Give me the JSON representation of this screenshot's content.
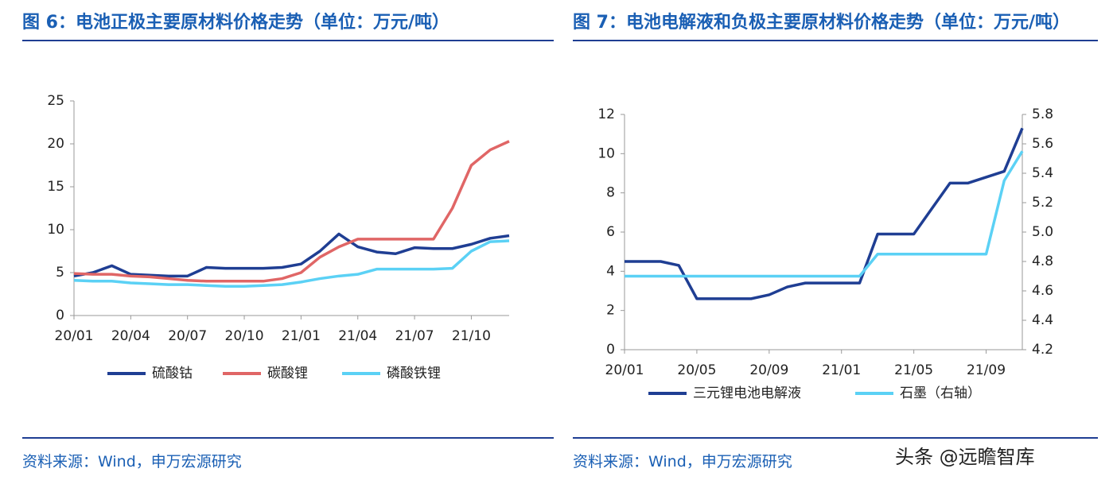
{
  "chart_data": [
    {
      "type": "line",
      "title": "图 6：电池正极主要原材料价格走势（单位：万元/吨）",
      "source": "资料来源：Wind，申万宏源研究",
      "categories": [
        "20/01",
        null,
        null,
        "20/04",
        null,
        null,
        "20/07",
        null,
        null,
        "20/10",
        null,
        null,
        "21/01",
        null,
        null,
        "21/04",
        null,
        null,
        "21/07",
        null,
        null,
        "21/10",
        null,
        null
      ],
      "series": [
        {
          "name": "硫酸钴",
          "color": "#1f3e93",
          "values": [
            4.6,
            5.0,
            5.8,
            4.8,
            4.7,
            4.6,
            4.6,
            5.6,
            5.5,
            5.5,
            5.5,
            5.6,
            6.0,
            7.5,
            9.5,
            8.0,
            7.4,
            7.2,
            7.9,
            7.8,
            7.8,
            8.3,
            9.0,
            9.3
          ]
        },
        {
          "name": "碳酸锂",
          "color": "#e06666",
          "values": [
            4.9,
            4.8,
            4.8,
            4.6,
            4.5,
            4.3,
            4.1,
            4.0,
            4.0,
            4.0,
            4.0,
            4.3,
            5.0,
            6.8,
            8.0,
            8.9,
            8.9,
            8.9,
            8.9,
            8.9,
            12.5,
            17.5,
            19.3,
            20.3
          ]
        },
        {
          "name": "磷酸铁锂",
          "color": "#5bd1f5",
          "values": [
            4.1,
            4.0,
            4.0,
            3.8,
            3.7,
            3.6,
            3.6,
            3.5,
            3.4,
            3.4,
            3.5,
            3.6,
            3.9,
            4.3,
            4.6,
            4.8,
            5.4,
            5.4,
            5.4,
            5.4,
            5.5,
            7.5,
            8.6,
            8.7
          ]
        }
      ],
      "ylim": [
        0,
        25
      ],
      "yticks": [
        0,
        5,
        10,
        15,
        20,
        25
      ],
      "grid": false
    },
    {
      "type": "line",
      "title": "图 7：电池电解液和负极主要原材料价格走势（单位：万元/吨）",
      "source": "资料来源：Wind，申万宏源研究",
      "watermark": "头条 @远瞻智库",
      "categories": [
        "20/01",
        null,
        null,
        null,
        "20/05",
        null,
        null,
        null,
        "20/09",
        null,
        null,
        null,
        "21/01",
        null,
        null,
        null,
        "21/05",
        null,
        null,
        null,
        "21/09",
        null,
        null
      ],
      "series": [
        {
          "name": "三元锂电池电解液",
          "color": "#1f3e93",
          "values": [
            4.5,
            4.5,
            4.5,
            4.3,
            2.6,
            2.6,
            2.6,
            2.6,
            2.8,
            3.2,
            3.4,
            3.4,
            3.4,
            3.4,
            5.9,
            5.9,
            5.9,
            7.2,
            8.5,
            8.5,
            8.8,
            9.1,
            11.3
          ]
        },
        {
          "name": "石墨（右轴）",
          "color": "#5bd1f5",
          "axis": "y2",
          "values": [
            4.7,
            4.7,
            4.7,
            4.7,
            4.7,
            4.7,
            4.7,
            4.7,
            4.7,
            4.7,
            4.7,
            4.7,
            4.7,
            4.7,
            4.85,
            4.85,
            4.85,
            4.85,
            4.85,
            4.85,
            4.85,
            5.35,
            5.55
          ]
        }
      ],
      "ylim": [
        0,
        12
      ],
      "yticks": [
        0,
        2,
        4,
        6,
        8,
        10,
        12
      ],
      "y2lim": [
        4.2,
        5.8
      ],
      "y2ticks": [
        4.2,
        4.4,
        4.6,
        4.8,
        {
          "value": 5,
          "label": "5.0"
        },
        5.2,
        5.4,
        5.6,
        5.8
      ],
      "grid": false
    }
  ]
}
